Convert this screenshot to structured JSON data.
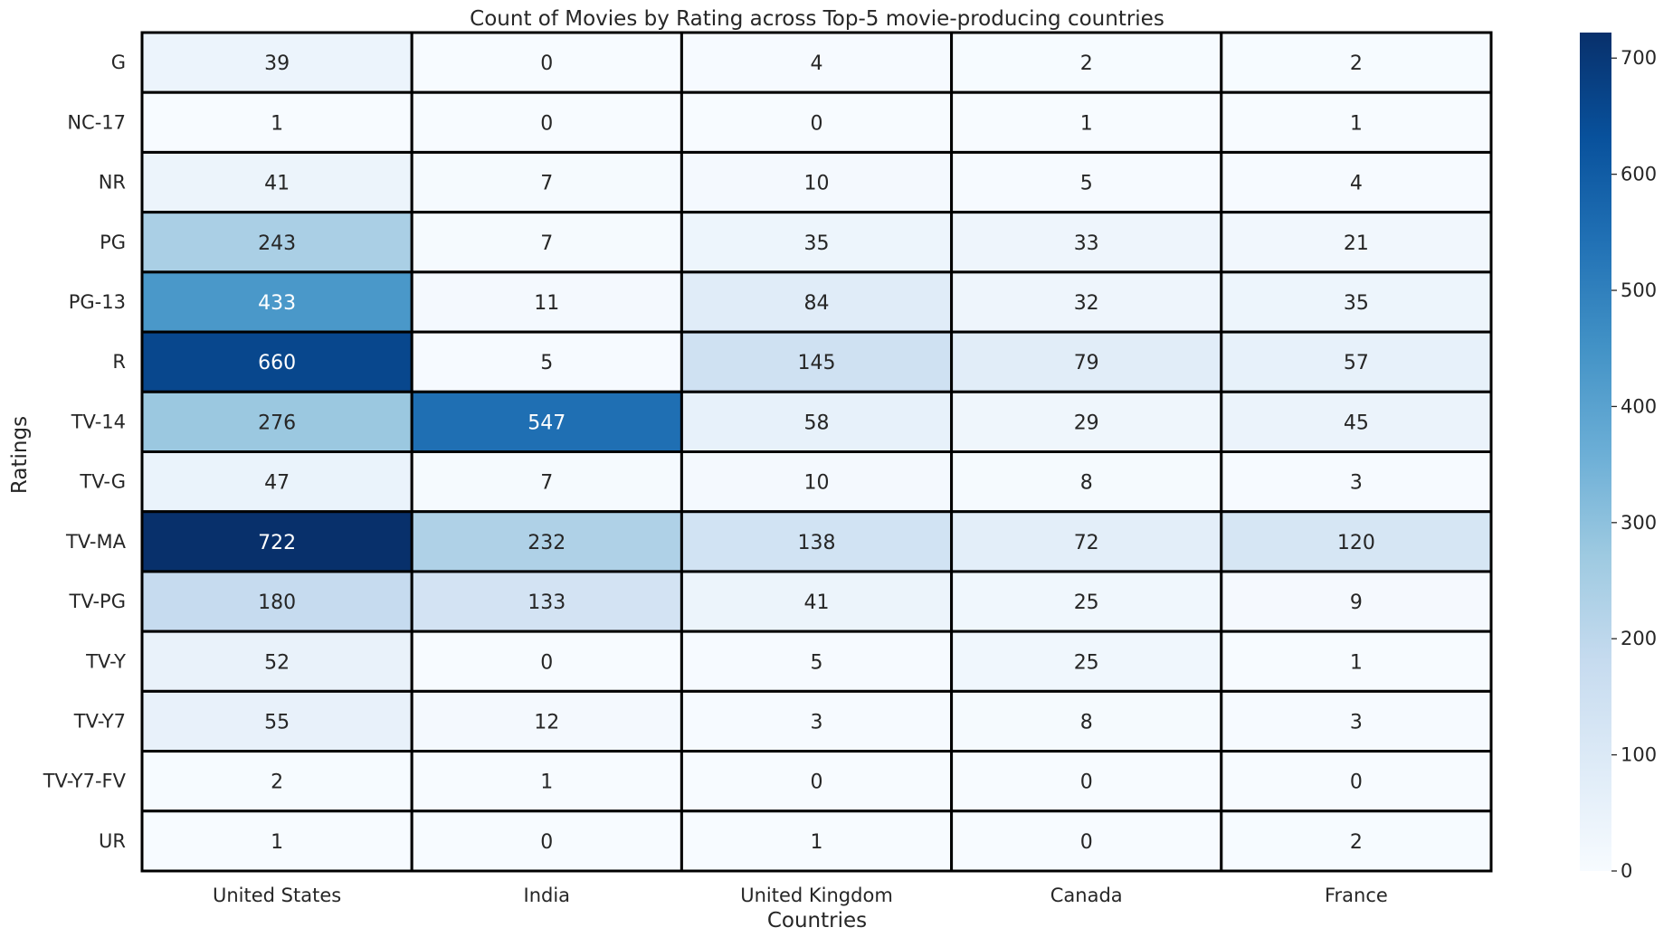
{
  "chart_data": {
    "type": "heatmap",
    "title": "Count of Movies by Rating across Top-5 movie-producing countries",
    "xlabel": "Countries",
    "ylabel": "Ratings",
    "columns": [
      "United States",
      "India",
      "United Kingdom",
      "Canada",
      "France"
    ],
    "rows": [
      "G",
      "NC-17",
      "NR",
      "PG",
      "PG-13",
      "R",
      "TV-14",
      "TV-G",
      "TV-MA",
      "TV-PG",
      "TV-Y",
      "TV-Y7",
      "TV-Y7-FV",
      "UR"
    ],
    "values": [
      [
        39,
        0,
        4,
        2,
        2
      ],
      [
        1,
        0,
        0,
        1,
        1
      ],
      [
        41,
        7,
        10,
        5,
        4
      ],
      [
        243,
        7,
        35,
        33,
        21
      ],
      [
        433,
        11,
        84,
        32,
        35
      ],
      [
        660,
        5,
        145,
        79,
        57
      ],
      [
        276,
        547,
        58,
        29,
        45
      ],
      [
        47,
        7,
        10,
        8,
        3
      ],
      [
        722,
        232,
        138,
        72,
        120
      ],
      [
        180,
        133,
        41,
        25,
        9
      ],
      [
        52,
        0,
        5,
        25,
        1
      ],
      [
        55,
        12,
        3,
        8,
        3
      ],
      [
        2,
        1,
        0,
        0,
        0
      ],
      [
        1,
        0,
        1,
        0,
        2
      ]
    ],
    "colormap": "Blues",
    "colorbar": {
      "range": [
        0,
        722
      ],
      "ticks": [
        0,
        100,
        200,
        300,
        400,
        500,
        600,
        700
      ]
    },
    "cell_border_color": "#000000",
    "grid": false,
    "legend": "colorbar-right"
  }
}
